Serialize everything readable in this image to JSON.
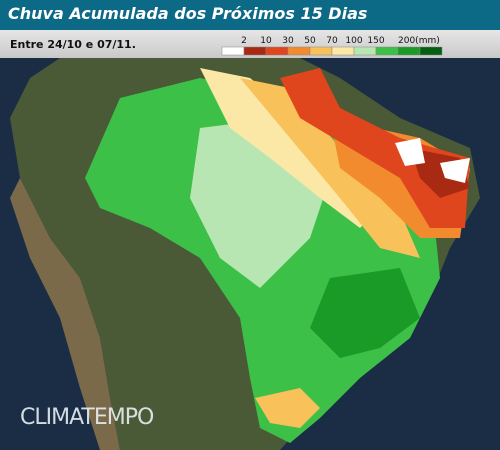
{
  "header": {
    "title": "Chuva Acumulada dos Próximos 15 Dias",
    "subtitle": "Entre 24/10 e 07/11."
  },
  "legend": {
    "colors": [
      "#ffffff",
      "#a82a12",
      "#e0461e",
      "#f28a2e",
      "#f8c15a",
      "#fbe7a6",
      "#b8e6b2",
      "#3cc048",
      "#1a9a26",
      "#055f12"
    ],
    "labels": [
      "2",
      "10",
      "30",
      "50",
      "70",
      "100",
      "150",
      "200(mm)"
    ]
  },
  "watermark": "CLIMATEMPO"
}
